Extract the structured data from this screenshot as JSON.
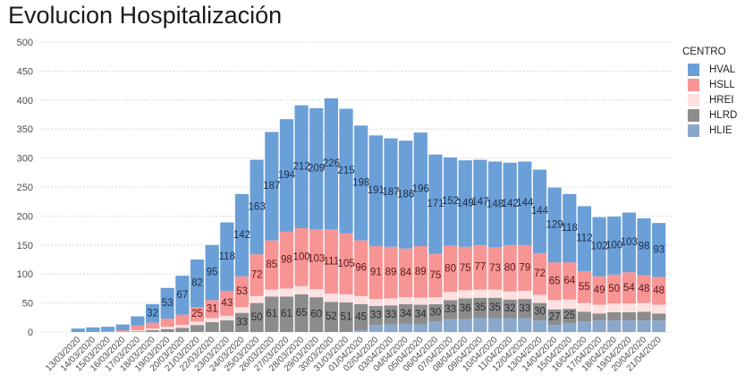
{
  "chart_data": {
    "type": "bar",
    "stacked": true,
    "title": "Evolucion Hospitalización",
    "xlabel": "",
    "ylabel": "",
    "ylim": [
      0,
      500
    ],
    "yticks": [
      0,
      50,
      100,
      150,
      200,
      250,
      300,
      350,
      400,
      450,
      500
    ],
    "grid": true,
    "legend": {
      "title": "CENTRO",
      "placement": "right"
    },
    "categories": [
      "13/03/2020",
      "14/03/2020",
      "15/03/2020",
      "16/03/2020",
      "17/03/2020",
      "18/03/2020",
      "19/03/2020",
      "20/03/2020",
      "21/03/2020",
      "22/03/2020",
      "23/03/2020",
      "24/03/2020",
      "25/03/2020",
      "26/03/2020",
      "27/03/2020",
      "28/03/2020",
      "29/03/2020",
      "30/03/2020",
      "31/03/2020",
      "01/04/2020",
      "02/04/2020",
      "03/04/2020",
      "04/04/2020",
      "05/04/2020",
      "06/04/2020",
      "07/04/2020",
      "08/04/2020",
      "09/04/2020",
      "10/04/2020",
      "11/04/2020",
      "12/04/2020",
      "13/04/2020",
      "14/04/2020",
      "15/04/2020",
      "16/04/2020",
      "17/04/2020",
      "18/04/2020",
      "19/04/2020",
      "20/04/2020",
      "21/04/2020"
    ],
    "series": [
      {
        "name": "HLIE",
        "color": "#8aa8cc",
        "label_color": "#333333",
        "values": [
          0,
          0,
          0,
          0,
          0,
          0,
          0,
          0,
          0,
          0,
          0,
          0,
          0,
          0,
          0,
          0,
          0,
          0,
          0,
          3,
          12,
          13,
          14,
          13,
          18,
          22,
          22,
          24,
          24,
          24,
          24,
          20,
          12,
          15,
          18,
          20,
          20,
          20,
          20,
          20
        ],
        "labels": [
          null,
          null,
          null,
          null,
          null,
          null,
          null,
          null,
          null,
          null,
          null,
          null,
          null,
          null,
          null,
          null,
          null,
          null,
          null,
          null,
          null,
          null,
          null,
          null,
          null,
          null,
          null,
          null,
          null,
          null,
          null,
          null,
          null,
          null,
          null,
          null,
          null,
          null,
          null,
          null
        ]
      },
      {
        "name": "HLRD",
        "color": "#8c8c8c",
        "label_color": "#2b2b2b",
        "values": [
          0,
          0,
          0,
          0,
          1,
          3,
          5,
          7,
          12,
          17,
          20,
          33,
          50,
          61,
          61,
          65,
          60,
          52,
          51,
          45,
          33,
          33,
          34,
          34,
          30,
          33,
          36,
          35,
          35,
          32,
          33,
          30,
          27,
          25,
          17,
          12,
          14,
          14,
          15,
          12
        ],
        "labels": [
          null,
          null,
          null,
          null,
          null,
          null,
          null,
          null,
          null,
          null,
          null,
          33,
          50,
          61,
          61,
          65,
          60,
          52,
          51,
          45,
          33,
          33,
          34,
          34,
          30,
          33,
          36,
          35,
          35,
          32,
          33,
          30,
          27,
          25,
          null,
          null,
          null,
          null,
          null,
          null
        ]
      },
      {
        "name": "HREI",
        "color": "#fde0e0",
        "label_color": "#333333",
        "values": [
          0,
          0,
          0,
          0,
          2,
          3,
          4,
          5,
          6,
          7,
          8,
          10,
          12,
          12,
          14,
          14,
          14,
          14,
          14,
          14,
          12,
          12,
          12,
          12,
          12,
          14,
          14,
          14,
          14,
          14,
          14,
          14,
          16,
          16,
          15,
          15,
          15,
          15,
          15,
          15
        ],
        "labels": [
          null,
          null,
          null,
          null,
          null,
          null,
          null,
          null,
          null,
          null,
          null,
          null,
          null,
          null,
          null,
          null,
          null,
          null,
          null,
          null,
          null,
          null,
          null,
          null,
          null,
          null,
          null,
          null,
          null,
          null,
          null,
          null,
          null,
          null,
          null,
          null,
          null,
          null,
          null,
          null
        ]
      },
      {
        "name": "HSLL",
        "color": "#f79494",
        "label_color": "#5a1a1a",
        "values": [
          0,
          0,
          1,
          3,
          8,
          10,
          14,
          18,
          25,
          31,
          43,
          53,
          72,
          85,
          98,
          100,
          103,
          111,
          105,
          96,
          91,
          89,
          84,
          89,
          75,
          80,
          75,
          77,
          73,
          80,
          79,
          72,
          65,
          64,
          55,
          49,
          50,
          54,
          48,
          48
        ],
        "labels": [
          null,
          null,
          null,
          null,
          null,
          null,
          null,
          null,
          25,
          31,
          43,
          53,
          72,
          85,
          98,
          100,
          103,
          111,
          105,
          96,
          91,
          89,
          84,
          89,
          75,
          80,
          75,
          77,
          73,
          80,
          79,
          72,
          65,
          64,
          55,
          49,
          50,
          54,
          48,
          48
        ]
      },
      {
        "name": "HVAL",
        "color": "#6a9fd8",
        "label_color": "#1c2f4a",
        "values": [
          6,
          8,
          8,
          10,
          16,
          32,
          53,
          67,
          82,
          95,
          118,
          142,
          163,
          187,
          194,
          212,
          209,
          226,
          215,
          198,
          191,
          187,
          186,
          196,
          171,
          152,
          149,
          147,
          148,
          142,
          144,
          144,
          129,
          118,
          112,
          102,
          100,
          103,
          98,
          93
        ],
        "labels": [
          null,
          null,
          null,
          null,
          null,
          32,
          53,
          67,
          82,
          95,
          118,
          142,
          163,
          187,
          194,
          212,
          209,
          226,
          215,
          198,
          191,
          187,
          186,
          196,
          171,
          152,
          149,
          147,
          148,
          142,
          144,
          144,
          129,
          118,
          112,
          102,
          100,
          103,
          98,
          93
        ]
      }
    ]
  },
  "legend_order": [
    "HVAL",
    "HSLL",
    "HREI",
    "HLRD",
    "HLIE"
  ]
}
